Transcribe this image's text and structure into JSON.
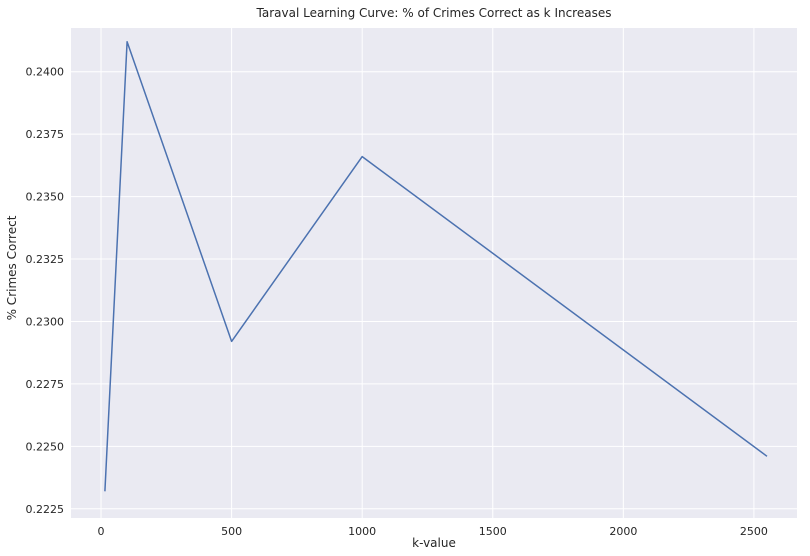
{
  "chart_data": {
    "type": "line",
    "title": "Taraval Learning Curve: % of Crimes Correct as k Increases",
    "xlabel": "k-value",
    "ylabel": "% Crimes Correct",
    "xlim": [
      -115,
      2665
    ],
    "ylim": [
      0.22213,
      0.24175
    ],
    "x_ticks": [
      0,
      500,
      1000,
      1500,
      2000,
      2500
    ],
    "x_tick_labels": [
      "0",
      "500",
      "1000",
      "1500",
      "2000",
      "2500"
    ],
    "y_ticks": [
      0.2225,
      0.225,
      0.2275,
      0.23,
      0.2325,
      0.235,
      0.2375,
      0.24
    ],
    "y_tick_labels": [
      "0.2225",
      "0.2250",
      "0.2275",
      "0.2300",
      "0.2325",
      "0.2350",
      "0.2375",
      "0.2400"
    ],
    "grid": true,
    "series": [
      {
        "x": [
          15,
          100,
          500,
          1000,
          2550
        ],
        "y": [
          0.2232,
          0.2412,
          0.2292,
          0.2366,
          0.2246
        ]
      }
    ]
  },
  "colors": {
    "plot_background": "#eaeaf2",
    "grid": "#ffffff",
    "line": "#4c72b0",
    "text": "#262626"
  }
}
